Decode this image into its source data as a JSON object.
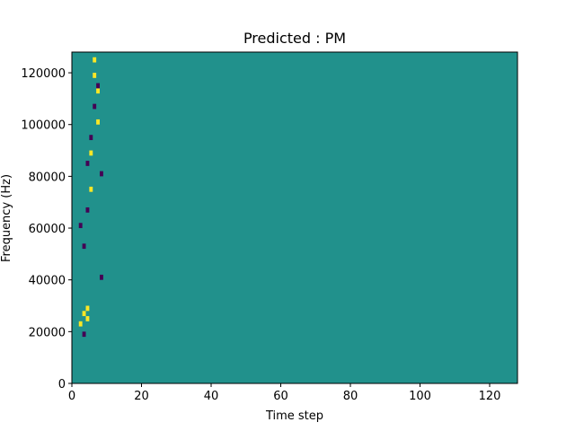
{
  "chart_data": {
    "type": "heatmap",
    "title": "Predicted : PM",
    "xlabel": "Time step",
    "ylabel": "Frequency (Hz)",
    "xlim": [
      0,
      128
    ],
    "ylim": [
      0,
      128000
    ],
    "x_ticks": [
      0,
      20,
      40,
      60,
      80,
      100,
      120
    ],
    "y_ticks": [
      0,
      20000,
      40000,
      60000,
      80000,
      100000,
      120000
    ],
    "grid": false,
    "legend": "none",
    "n_time_steps": 128,
    "n_freq_bins": 64,
    "freq_bin_width_hz": 2000,
    "value_levels": [
      -1,
      0,
      1
    ],
    "background_value": 0,
    "colors": {
      "-1": "#440154",
      "0": "#21918c",
      "1": "#fde725"
    },
    "cells": {
      "1": [
        [
          2,
          11
        ],
        [
          3,
          13
        ],
        [
          4,
          12
        ],
        [
          4,
          14
        ],
        [
          5,
          37
        ],
        [
          5,
          44
        ],
        [
          6,
          62
        ],
        [
          6,
          59
        ],
        [
          7,
          56
        ],
        [
          7,
          50
        ]
      ],
      "-1": [
        [
          2,
          30
        ],
        [
          3,
          9
        ],
        [
          3,
          26
        ],
        [
          4,
          33
        ],
        [
          4,
          42
        ],
        [
          5,
          47
        ],
        [
          6,
          53
        ],
        [
          7,
          57
        ],
        [
          8,
          40
        ],
        [
          8,
          20
        ]
      ]
    }
  }
}
